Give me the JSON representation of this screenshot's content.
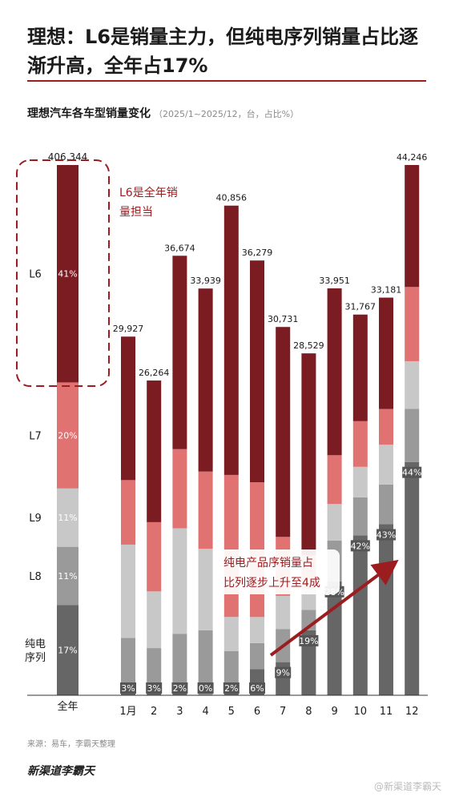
{
  "header": {
    "title": "理想：L6是销量主力，但纯电序列销量占比逐渐升高，全年占17%"
  },
  "chart_subtitle": {
    "main": "理想汽车各车型销量变化",
    "note": "（2025/1~2025/12，台，占比%）"
  },
  "annotations": {
    "l6_note_line1": "L6是全年销",
    "l6_note_line2": "量担当",
    "ev_note_line1": "纯电产品序销量占",
    "ev_note_line2": "比列逐步上升至4成"
  },
  "footer": {
    "source": "来源：易车，李霸天整理",
    "brand": "新渠道李霸天",
    "watermark": "@新渠道李霸天"
  },
  "colors": {
    "accent": "#9c1d20",
    "L6": "#7a1c22",
    "L7": "#e07272",
    "L9": "#c8c8c8",
    "L8": "#9a9a9a",
    "EV": "#666666"
  },
  "chart_data": {
    "type": "bar",
    "stacked": true,
    "annual": {
      "category": "全年",
      "total": "406,344",
      "segments": [
        {
          "name": "纯电序列",
          "share": 0.17,
          "label": "17%"
        },
        {
          "name": "L8",
          "share": 0.11,
          "label": "11%"
        },
        {
          "name": "L9",
          "share": 0.11,
          "label": "11%"
        },
        {
          "name": "L7",
          "share": 0.2,
          "label": "20%"
        },
        {
          "name": "L6",
          "share": 0.41,
          "label": "41%"
        }
      ],
      "row_labels": [
        {
          "name": "L6",
          "lines": [
            "L6"
          ]
        },
        {
          "name": "L7",
          "lines": [
            "L7"
          ]
        },
        {
          "name": "L9",
          "lines": [
            "L9"
          ]
        },
        {
          "name": "L8",
          "lines": [
            "L8"
          ]
        },
        {
          "name": "纯电序列",
          "lines": [
            "纯电",
            "序列"
          ]
        }
      ]
    },
    "categories": [
      "1月",
      "2",
      "3",
      "4",
      "5",
      "6",
      "7",
      "8",
      "9",
      "10",
      "11",
      "12"
    ],
    "totals": [
      29927,
      26264,
      36674,
      33939,
      40856,
      36279,
      30731,
      28529,
      33951,
      31767,
      33181,
      44246
    ],
    "total_labels": [
      "29,927",
      "26,264",
      "36,674",
      "33,939",
      "40,856",
      "36,279",
      "30,731",
      "28,529",
      "33,951",
      "31,767",
      "33,181",
      "44,246"
    ],
    "series": [
      {
        "name": "纯电序列",
        "share": [
          0.03,
          0.03,
          0.02,
          0.0,
          0.02,
          0.06,
          0.09,
          0.19,
          0.28,
          0.42,
          0.43,
          0.44
        ],
        "labels": [
          "3%",
          "3%",
          "2%",
          "0%",
          "2%",
          "6%",
          "9%",
          "19%",
          "28%",
          "42%",
          "43%",
          "44%"
        ]
      },
      {
        "name": "L8",
        "share": [
          0.13,
          0.12,
          0.12,
          0.16,
          0.07,
          0.06,
          0.09,
          0.06,
          0.1,
          0.1,
          0.1,
          0.1
        ]
      },
      {
        "name": "L9",
        "share": [
          0.26,
          0.18,
          0.24,
          0.2,
          0.07,
          0.06,
          0.09,
          0.06,
          0.09,
          0.08,
          0.1,
          0.09
        ]
      },
      {
        "name": "L7",
        "share": [
          0.18,
          0.22,
          0.18,
          0.19,
          0.29,
          0.31,
          0.16,
          0.1,
          0.12,
          0.12,
          0.09,
          0.14
        ]
      },
      {
        "name": "L6",
        "share": [
          0.4,
          0.45,
          0.44,
          0.45,
          0.55,
          0.51,
          0.57,
          0.59,
          0.41,
          0.28,
          0.28,
          0.23
        ]
      }
    ],
    "ylim": [
      0,
      44246
    ],
    "title": "理想汽车各车型销量变化",
    "xlabel": "",
    "ylabel": ""
  }
}
